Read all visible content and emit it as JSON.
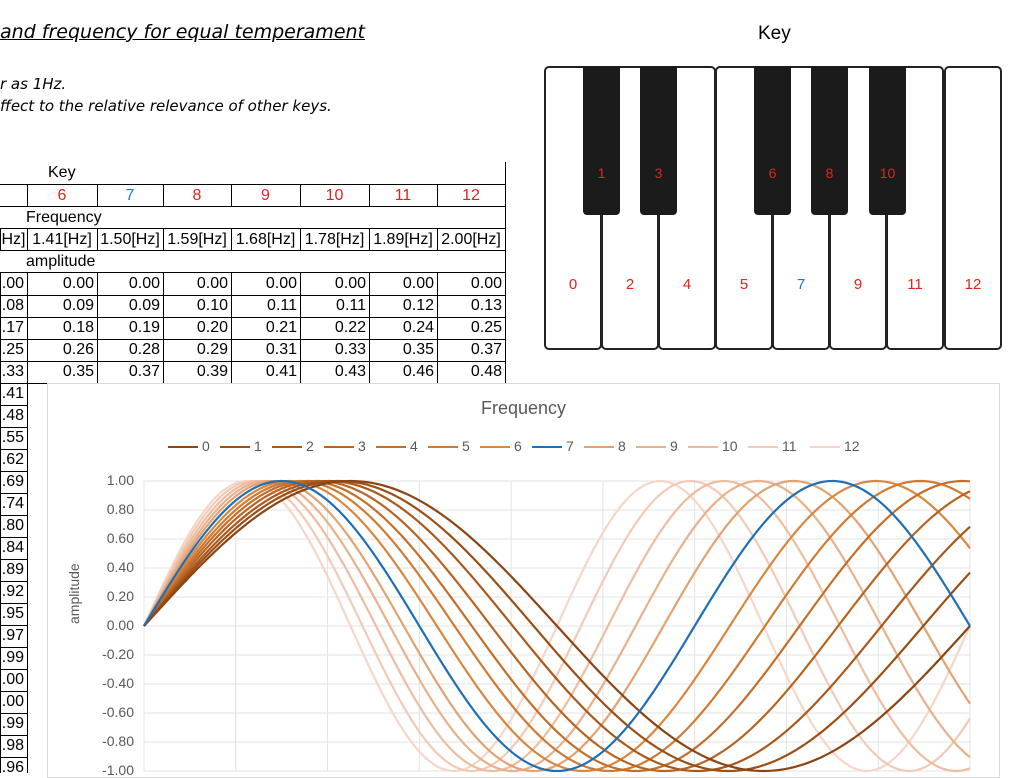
{
  "header": {
    "title": "and frequency for equal temperament",
    "note1": "r as 1Hz.",
    "note2": "ffect to the relative relevance of other keys."
  },
  "key_heading": "Key",
  "piano": {
    "white_keys": [
      {
        "label": "0",
        "color": "#e0241c"
      },
      {
        "label": "2",
        "color": "#e0241c"
      },
      {
        "label": "4",
        "color": "#e0241c"
      },
      {
        "label": "5",
        "color": "#e0241c"
      },
      {
        "label": "7",
        "color": "#1f78c0"
      },
      {
        "label": "9",
        "color": "#e0241c"
      },
      {
        "label": "11",
        "color": "#e0241c"
      },
      {
        "label": "12",
        "color": "#e0241c"
      }
    ],
    "black_keys": [
      {
        "label": "1",
        "color": "#e0241c"
      },
      {
        "label": "3",
        "color": "#e0241c"
      },
      {
        "label": "6",
        "color": "#e0241c"
      },
      {
        "label": "8",
        "color": "#e0241c"
      },
      {
        "label": "10",
        "color": "#e0241c"
      }
    ]
  },
  "table": {
    "key_label": "Key",
    "keys": [
      "6",
      "7",
      "8",
      "9",
      "10",
      "11",
      "12"
    ],
    "key_colors": [
      "#e0241c",
      "#1f78c0",
      "#e0241c",
      "#e0241c",
      "#e0241c",
      "#e0241c",
      "#e0241c"
    ],
    "frequency_label": "Frequency",
    "frequencies": [
      "Hz]",
      "1.41[Hz]",
      "1.50[Hz]",
      "1.59[Hz]",
      "1.68[Hz]",
      "1.78[Hz]",
      "1.89[Hz]",
      "2.00[Hz]"
    ],
    "amplitude_label": "amplitude",
    "rows": [
      [
        ".00",
        "0.00",
        "0.00",
        "0.00",
        "0.00",
        "0.00",
        "0.00",
        "0.00"
      ],
      [
        ".08",
        "0.09",
        "0.09",
        "0.10",
        "0.11",
        "0.11",
        "0.12",
        "0.13"
      ],
      [
        ".17",
        "0.18",
        "0.19",
        "0.20",
        "0.21",
        "0.22",
        "0.24",
        "0.25"
      ],
      [
        ".25",
        "0.26",
        "0.28",
        "0.29",
        "0.31",
        "0.33",
        "0.35",
        "0.37"
      ],
      [
        ".33",
        "0.35",
        "0.37",
        "0.39",
        "0.41",
        "0.43",
        "0.46",
        "0.48"
      ],
      [
        ".41"
      ],
      [
        ".48"
      ],
      [
        ".55"
      ],
      [
        ".62"
      ],
      [
        ".69"
      ],
      [
        ".74"
      ],
      [
        ".80"
      ],
      [
        ".84"
      ],
      [
        ".89"
      ],
      [
        ".92"
      ],
      [
        ".95"
      ],
      [
        ".97"
      ],
      [
        ".99"
      ],
      [
        ".00"
      ],
      [
        ".00"
      ],
      [
        ".99"
      ],
      [
        ".98"
      ],
      [
        ".96"
      ]
    ]
  },
  "chart_data": {
    "type": "line",
    "title": "Frequency",
    "ylabel": "amplitude",
    "xlabel": "",
    "ylim": [
      -1.0,
      1.0
    ],
    "yticks": [
      "1.00",
      "0.80",
      "0.60",
      "0.40",
      "0.20",
      "0.00",
      "-0.20",
      "-0.40",
      "-0.60",
      "-0.80",
      "-1.00"
    ],
    "grid": true,
    "legend_position": "top",
    "series": [
      {
        "name": "0",
        "frequency": 1.0,
        "color": "#8b4513"
      },
      {
        "name": "1",
        "frequency": 1.06,
        "color": "#9a4f17"
      },
      {
        "name": "2",
        "frequency": 1.12,
        "color": "#a9591c"
      },
      {
        "name": "3",
        "frequency": 1.19,
        "color": "#b86422"
      },
      {
        "name": "4",
        "frequency": 1.26,
        "color": "#c46f29"
      },
      {
        "name": "5",
        "frequency": 1.33,
        "color": "#cf7b33"
      },
      {
        "name": "6",
        "frequency": 1.41,
        "color": "#d8873f"
      },
      {
        "name": "7",
        "frequency": 1.5,
        "color": "#1f6fb4"
      },
      {
        "name": "8",
        "frequency": 1.59,
        "color": "#e3a272"
      },
      {
        "name": "9",
        "frequency": 1.68,
        "color": "#e9b08a"
      },
      {
        "name": "10",
        "frequency": 1.78,
        "color": "#eebda0"
      },
      {
        "name": "11",
        "frequency": 1.89,
        "color": "#f2cab5"
      },
      {
        "name": "12",
        "frequency": 2.0,
        "color": "#f5d6c8"
      }
    ]
  }
}
